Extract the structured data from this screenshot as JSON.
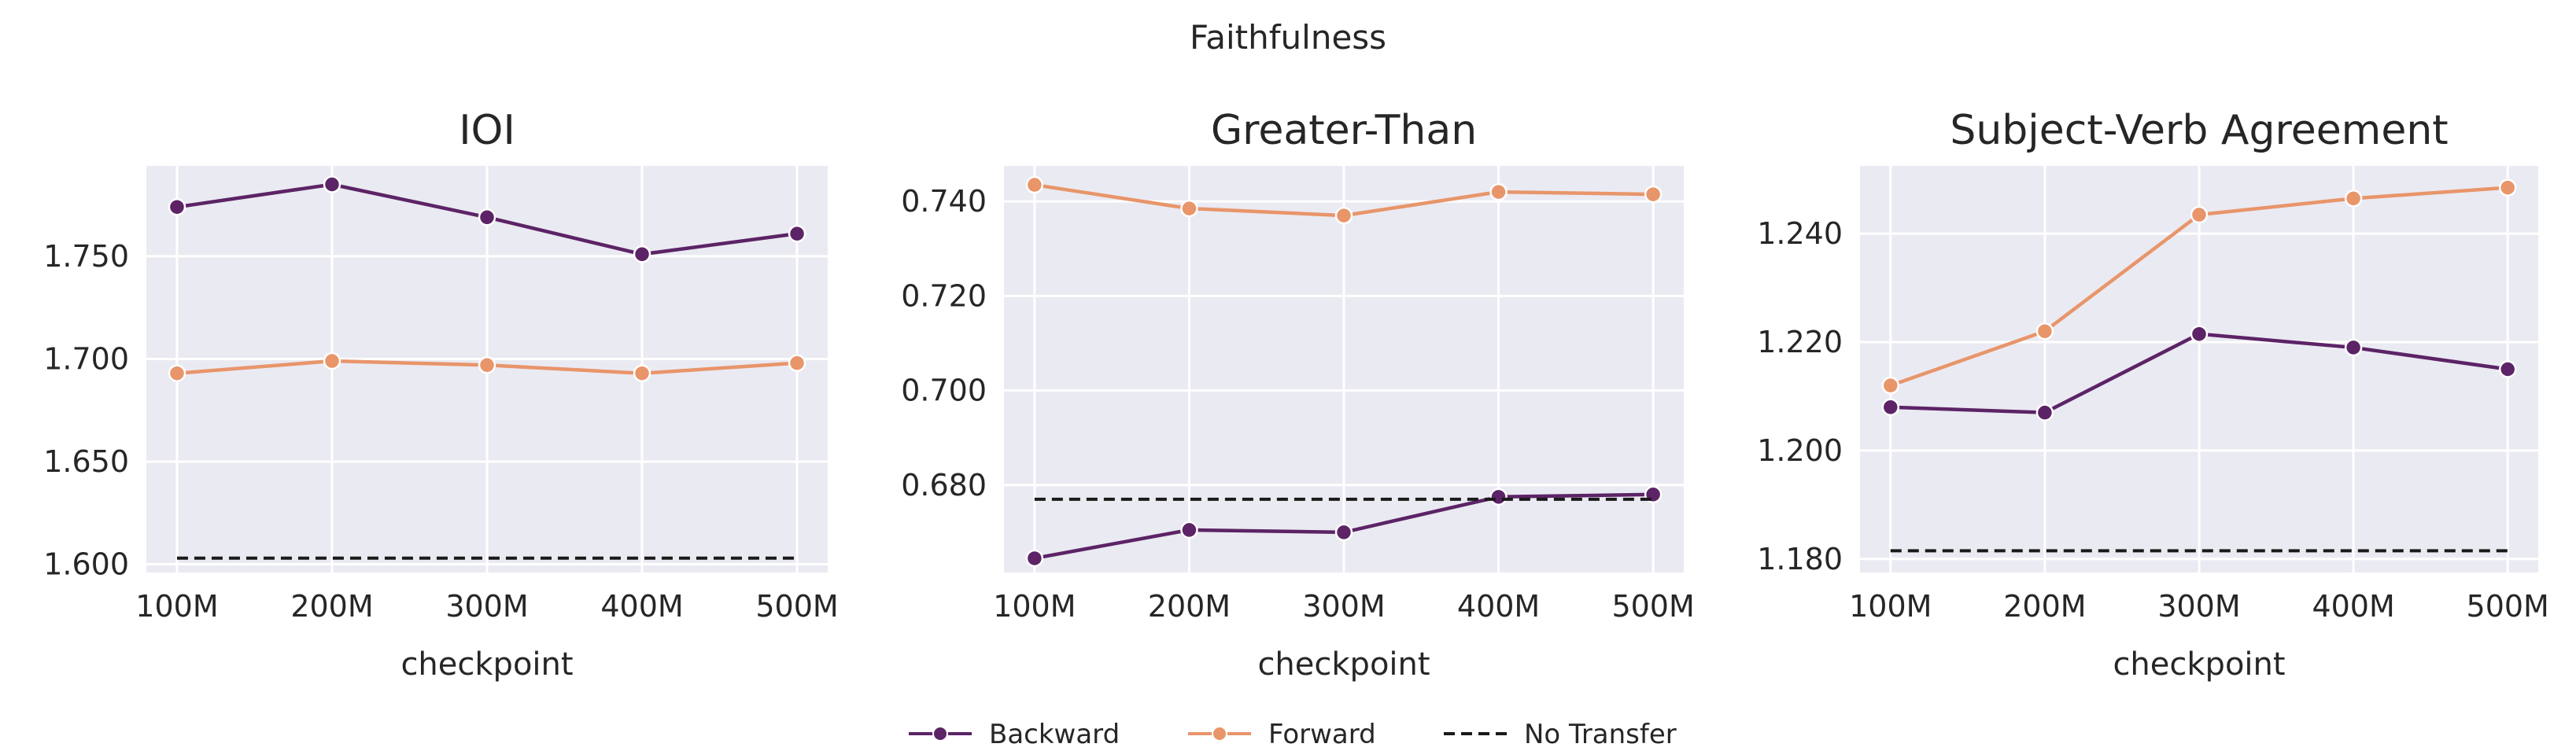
{
  "figure_title": "Faithfulness",
  "legend": {
    "placement": "bottom-center",
    "entries": [
      {
        "label": "Backward",
        "color": "#5c2366",
        "style": "line-marker"
      },
      {
        "label": "Forward",
        "color": "#e8956a",
        "style": "line-marker"
      },
      {
        "label": "No Transfer",
        "color": "#1a1a1a",
        "style": "dashed"
      }
    ]
  },
  "chart_data": [
    {
      "type": "line",
      "title": "IOI",
      "xlabel": "checkpoint",
      "ylabel": "",
      "categories": [
        "100M",
        "200M",
        "300M",
        "400M",
        "500M"
      ],
      "ylim": [
        1.596,
        1.794
      ],
      "yticks": [
        "1.600",
        "1.650",
        "1.700",
        "1.750"
      ],
      "grid": true,
      "series": [
        {
          "name": "Backward",
          "values": [
            1.774,
            1.785,
            1.769,
            1.751,
            1.761
          ]
        },
        {
          "name": "Forward",
          "values": [
            1.693,
            1.699,
            1.697,
            1.693,
            1.698
          ]
        },
        {
          "name": "No Transfer",
          "values": [
            1.603,
            1.603,
            1.603,
            1.603,
            1.603
          ]
        }
      ]
    },
    {
      "type": "line",
      "title": "Greater-Than",
      "xlabel": "checkpoint",
      "ylabel": "",
      "categories": [
        "100M",
        "200M",
        "300M",
        "400M",
        "500M"
      ],
      "ylim": [
        0.6615,
        0.7475
      ],
      "yticks": [
        "0.680",
        "0.700",
        "0.720",
        "0.740"
      ],
      "grid": true,
      "series": [
        {
          "name": "Backward",
          "values": [
            0.6645,
            0.6705,
            0.67,
            0.6775,
            0.678
          ]
        },
        {
          "name": "Forward",
          "values": [
            0.7435,
            0.7385,
            0.737,
            0.742,
            0.7415
          ]
        },
        {
          "name": "No Transfer",
          "values": [
            0.677,
            0.677,
            0.677,
            0.677,
            0.677
          ]
        }
      ]
    },
    {
      "type": "line",
      "title": "Subject-Verb Agreement",
      "xlabel": "checkpoint",
      "ylabel": "",
      "categories": [
        "100M",
        "200M",
        "300M",
        "400M",
        "500M"
      ],
      "ylim": [
        1.1775,
        1.2525
      ],
      "yticks": [
        "1.180",
        "1.200",
        "1.220",
        "1.240"
      ],
      "grid": true,
      "series": [
        {
          "name": "Backward",
          "values": [
            1.208,
            1.207,
            1.2215,
            1.219,
            1.215
          ]
        },
        {
          "name": "Forward",
          "values": [
            1.212,
            1.222,
            1.2435,
            1.2465,
            1.2485
          ]
        },
        {
          "name": "No Transfer",
          "values": [
            1.1815,
            1.1815,
            1.1815,
            1.1815,
            1.1815
          ]
        }
      ]
    }
  ]
}
